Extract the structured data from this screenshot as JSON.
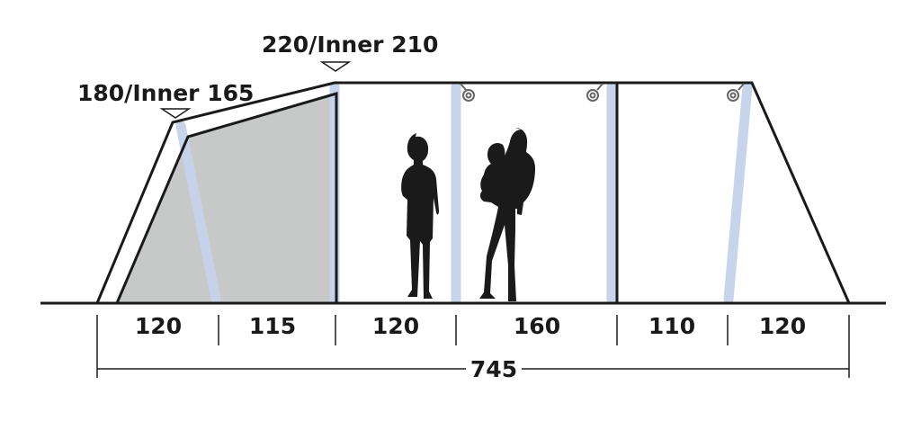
{
  "heights": {
    "front_label": "180/Inner 165",
    "main_label": "220/Inner 210"
  },
  "section_widths": [
    "120",
    "115",
    "120",
    "160",
    "110",
    "120"
  ],
  "total_length": "745",
  "colors": {
    "outline": "#1a1a1a",
    "pole": "#c5d3ec",
    "inner_fill": "#c7c9c9",
    "silhouette": "#1a1a1a"
  }
}
